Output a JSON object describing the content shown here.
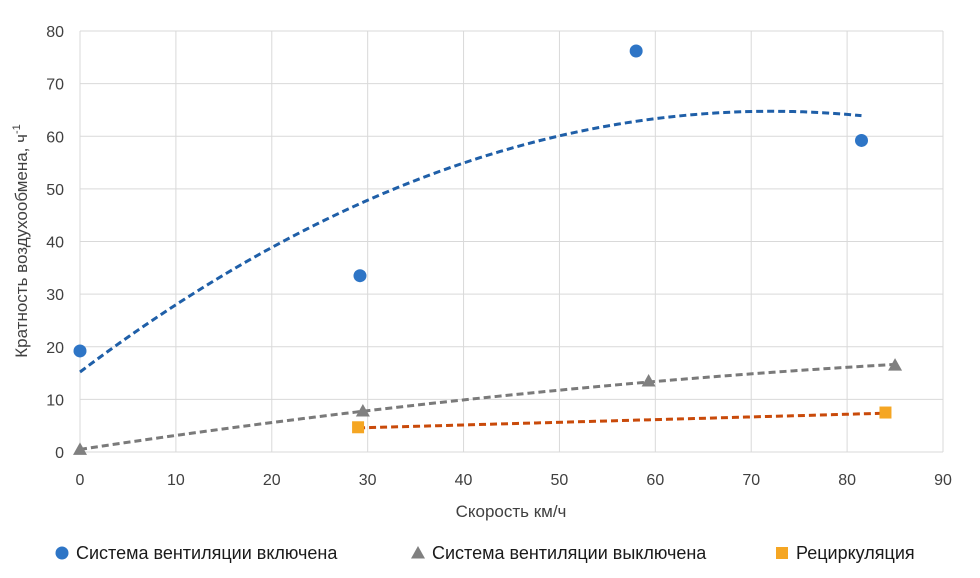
{
  "chart_data": {
    "type": "scatter",
    "xlabel": "Скорость км/ч",
    "ylabel": "Кратность воздухообмена, ч",
    "ylabel_superscript": "-1",
    "xlim": [
      0,
      90
    ],
    "ylim": [
      0,
      80
    ],
    "x_ticks": [
      "0",
      "10",
      "20",
      "30",
      "40",
      "50",
      "60",
      "70",
      "80",
      "90"
    ],
    "y_ticks": [
      "0",
      "10",
      "20",
      "30",
      "40",
      "50",
      "60",
      "70",
      "80"
    ],
    "grid": true,
    "legend_position": "bottom",
    "series": [
      {
        "name": "Система вентиляции включена",
        "marker": "circle",
        "color": "#2E75C6",
        "trend_color": "#1F5FA8",
        "points": [
          [
            0,
            19.2
          ],
          [
            29.2,
            33.5
          ],
          [
            58,
            76.2
          ],
          [
            81.5,
            59.2
          ]
        ],
        "trend": {
          "kind": "poly2",
          "x_range": [
            0,
            81.5
          ],
          "coef": [
            15.2,
            1.3737,
            -0.009522
          ]
        }
      },
      {
        "name": "Система вентиляции выключена",
        "marker": "triangle",
        "color": "#808080",
        "trend_color": "#7A7A7A",
        "points": [
          [
            0,
            0.5
          ],
          [
            29.5,
            7.8
          ],
          [
            59.3,
            13.5
          ],
          [
            85,
            16.5
          ]
        ],
        "trend": {
          "kind": "poly2",
          "x_range": [
            0,
            85
          ],
          "coef": [
            0.5,
            0.275,
            -0.001
          ]
        }
      },
      {
        "name": "Рециркуляция",
        "marker": "square",
        "color": "#F5A623",
        "trend_color": "#C94A0A",
        "points": [
          [
            29,
            4.7
          ],
          [
            84,
            7.5
          ]
        ],
        "trend": {
          "kind": "linear",
          "x_range": [
            29,
            84
          ],
          "coef": [
            3.1,
            0.0509
          ]
        }
      }
    ]
  }
}
